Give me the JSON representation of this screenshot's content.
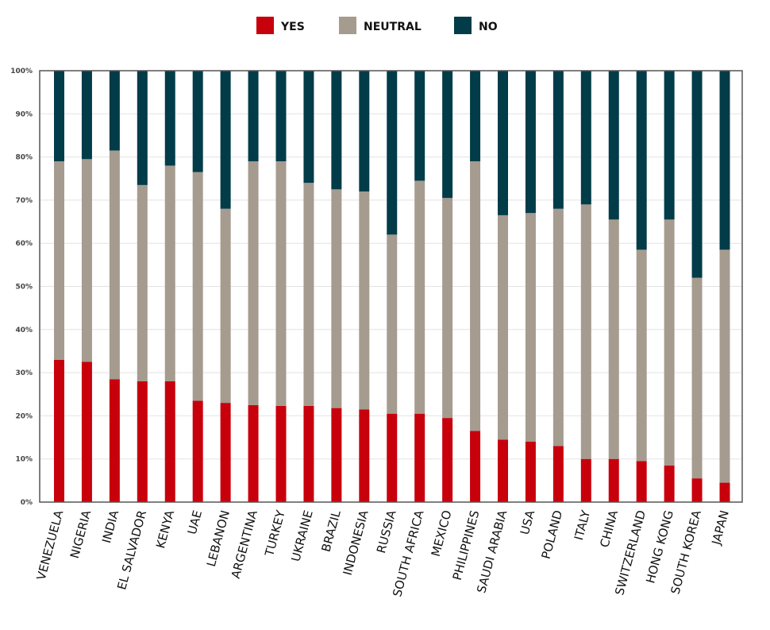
{
  "chart_data": {
    "type": "bar",
    "stacked": true,
    "title": "",
    "xlabel": "",
    "ylabel": "",
    "ylim": [
      0,
      100
    ],
    "y_ticks": [
      "0%",
      "10%",
      "20%",
      "30%",
      "40%",
      "50%",
      "60%",
      "70%",
      "80%",
      "90%",
      "100%"
    ],
    "grid": true,
    "legend_position": "top-center",
    "categories": [
      "VENEZUELA",
      "NIGERIA",
      "INDIA",
      "EL SALVADOR",
      "KENYA",
      "UAE",
      "LEBANON",
      "ARGENTINA",
      "TURKEY",
      "UKRAINE",
      "BRAZIL",
      "INDONESIA",
      "RUSSIA",
      "SOUTH AFRICA",
      "MEXICO",
      "PHILIPPINES",
      "SAUDI ARABIA",
      "USA",
      "POLAND",
      "ITALY",
      "CHINA",
      "SWITZERLAND",
      "HONG KONG",
      "SOUTH KOREA",
      "JAPAN"
    ],
    "series": [
      {
        "name": "YES",
        "color": "#c8000c",
        "values": [
          33,
          32.5,
          28.5,
          28,
          28,
          23.5,
          23,
          22.5,
          22.3,
          22.3,
          21.8,
          21.5,
          20.5,
          20.5,
          19.5,
          16.5,
          14.5,
          14,
          13,
          10,
          10,
          9.5,
          8.5,
          5.5,
          4.5
        ]
      },
      {
        "name": "NEUTRAL",
        "color": "#a59b8f",
        "values": [
          46,
          47,
          53,
          45.5,
          50,
          53,
          45,
          56.5,
          56.7,
          51.7,
          50.7,
          50.5,
          41.5,
          54,
          51,
          62.5,
          52,
          53,
          55,
          59,
          55.5,
          49,
          57,
          46.5,
          54
        ]
      },
      {
        "name": "NO",
        "color": "#023c49",
        "values": [
          21,
          20.5,
          18.5,
          26.5,
          22,
          23.5,
          32,
          21,
          21,
          26,
          27.5,
          28,
          38,
          25.5,
          29.5,
          21,
          33.5,
          33,
          32,
          31,
          34.5,
          41.5,
          34.5,
          48,
          41.5
        ]
      }
    ]
  }
}
